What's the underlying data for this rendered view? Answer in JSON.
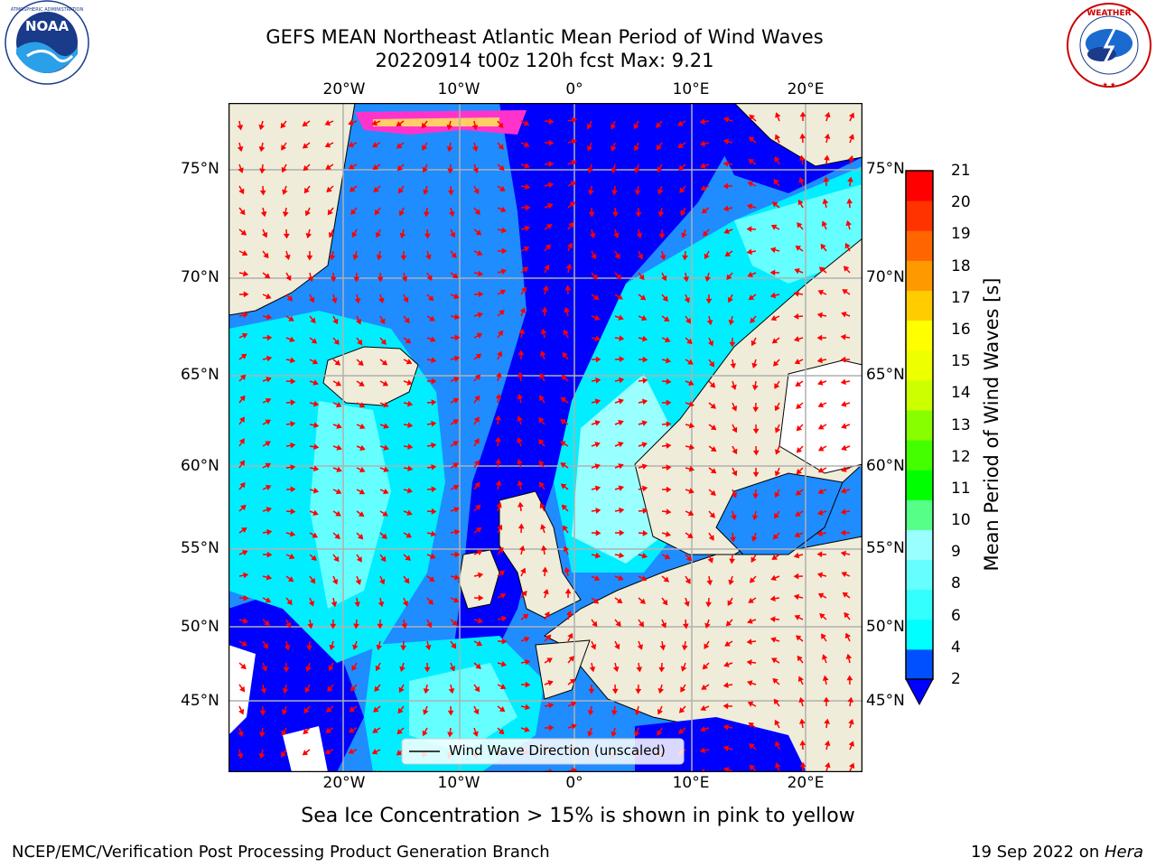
{
  "header": {
    "title_line1": "GEFS MEAN Northeast Atlantic Mean Period of Wind Waves",
    "title_line2": "20220914 t00z 120h fcst   Max: 9.21"
  },
  "logos": {
    "left": {
      "name": "NOAA",
      "ring_text": "NATIONAL OCEANIC AND ATMOSPHERIC ADMINISTRATION · U.S. DEPARTMENT OF COMMERCE"
    },
    "right": {
      "name": "NATIONAL WEATHER SERVICE"
    }
  },
  "map": {
    "lon_labels": [
      "20°W",
      "10°W",
      "0°",
      "10°E",
      "20°E"
    ],
    "lat_labels": [
      "75°N",
      "70°N",
      "65°N",
      "60°N",
      "55°N",
      "50°N",
      "45°N"
    ],
    "legend_label": "Wind Wave Direction (unscaled)",
    "colors": {
      "land": "#efedd9",
      "ocean_dark": "#0000ff",
      "ocean_mid": "#1f8cff",
      "ocean_light": "#00eeff",
      "arrow": "#ff0000",
      "ice": "#ff33cc"
    }
  },
  "colorbar": {
    "label": "Mean Period of Wind Waves [s]",
    "ticks": [
      "21",
      "20",
      "19",
      "18",
      "17",
      "16",
      "15",
      "14",
      "13",
      "12",
      "11",
      "10",
      "9",
      "8",
      "6",
      "4",
      "2"
    ],
    "colors": [
      "#0050ff",
      "#00ffff",
      "#33ffff",
      "#66ffff",
      "#99ffff",
      "#55ff88",
      "#00ff00",
      "#44ff00",
      "#88ff00",
      "#ccff00",
      "#eeff00",
      "#ffff00",
      "#ffcc00",
      "#ff9900",
      "#ff6600",
      "#ff3300",
      "#ff0000"
    ]
  },
  "footer": {
    "caption": "Sea Ice Concentration > 15% is shown in pink to yellow",
    "left": "NCEP/EMC/Verification Post Processing Product Generation Branch",
    "right_date": "19 Sep 2022 on ",
    "right_machine": "Hera"
  }
}
